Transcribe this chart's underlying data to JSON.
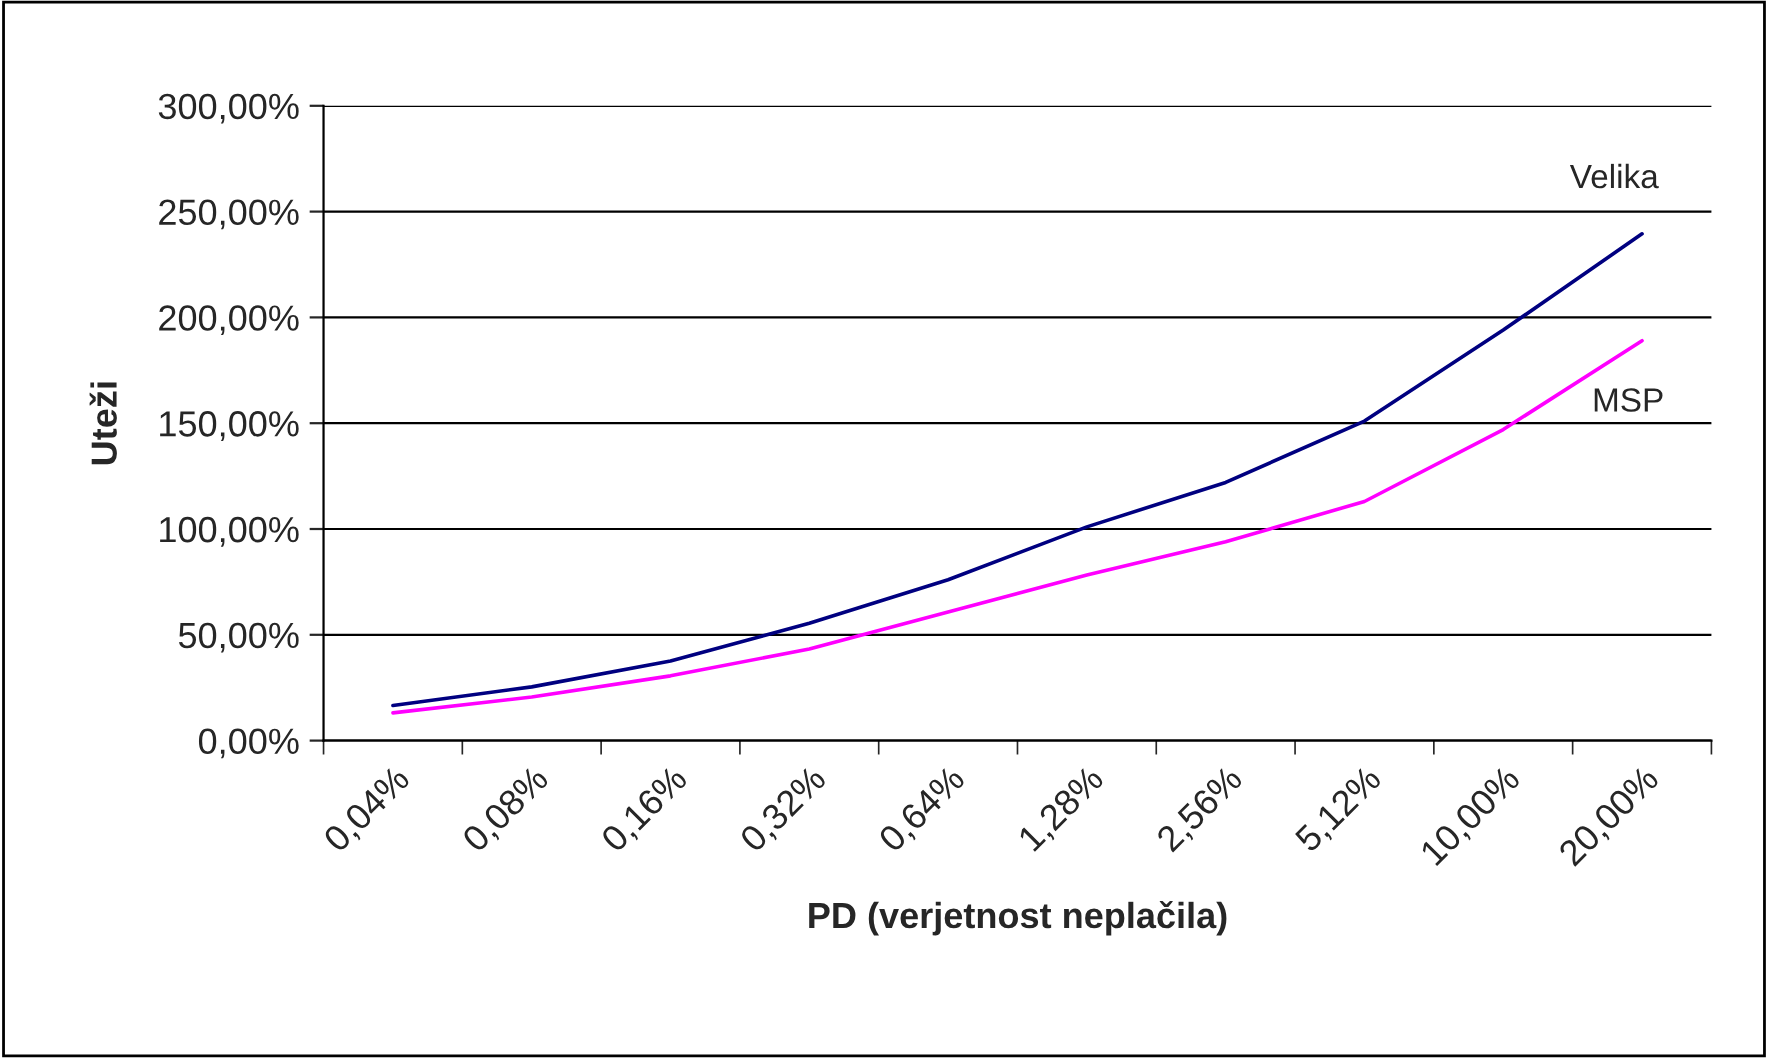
{
  "chart_data": {
    "type": "line",
    "xlabel": "PD (verjetnost neplačila)",
    "ylabel": "Uteži",
    "categories": [
      "0,04%",
      "0,08%",
      "0,16%",
      "0,32%",
      "0,64%",
      "1,28%",
      "2,56%",
      "5,12%",
      "10,00%",
      "20,00%"
    ],
    "series": [
      {
        "name": "Velika",
        "color": "#000080",
        "values": [
          16.6,
          25.4,
          37.6,
          55.5,
          76,
          101,
          122,
          151,
          194,
          239.5
        ]
      },
      {
        "name": "MSP",
        "color": "#ff00ff",
        "values": [
          13.1,
          20.6,
          30.6,
          43.3,
          60.8,
          78.3,
          94,
          113,
          147,
          189
        ]
      }
    ],
    "ylim": [
      0,
      300
    ],
    "yticks": [
      {
        "value": 0,
        "label": "0,00%"
      },
      {
        "value": 50,
        "label": "50,00%"
      },
      {
        "value": 100,
        "label": "100,00%"
      },
      {
        "value": 150,
        "label": "150,00%"
      },
      {
        "value": 200,
        "label": "200,00%"
      },
      {
        "value": 250,
        "label": "250,00%"
      },
      {
        "value": 300,
        "label": "300,00%"
      }
    ],
    "grid": "y",
    "legend": false,
    "marker": "none",
    "line_style": "solid"
  }
}
